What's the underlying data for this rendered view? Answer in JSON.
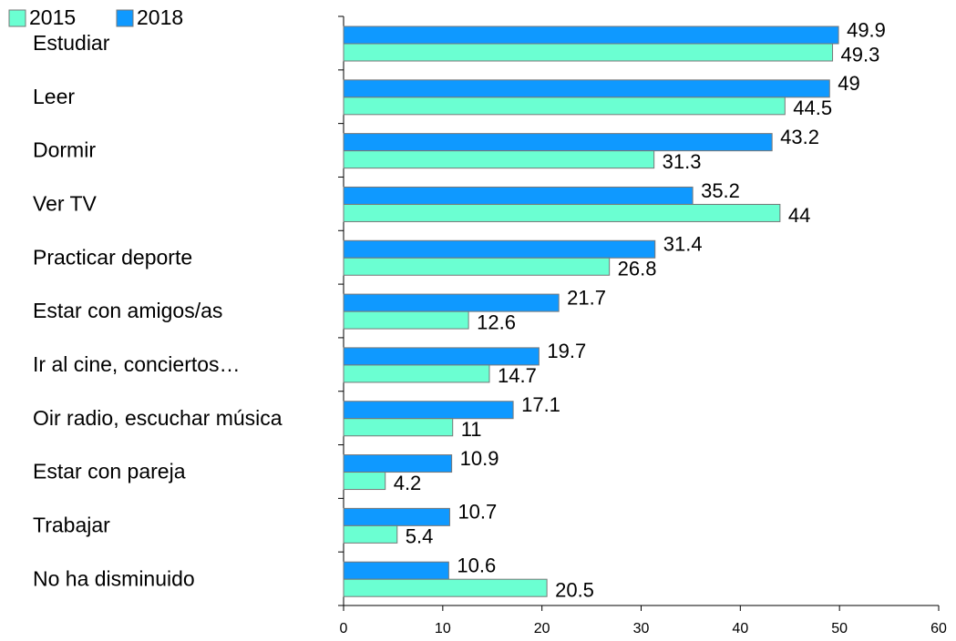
{
  "chart_data": {
    "type": "bar",
    "orientation": "horizontal",
    "categories": [
      "Estudiar",
      "Leer",
      "Dormir",
      "Ver TV",
      "Practicar deporte",
      "Estar con amigos/as",
      "Ir al cine, conciertos…",
      "Oir radio, escuchar música",
      "Estar con pareja",
      "Trabajar",
      "No ha disminuido"
    ],
    "series": [
      {
        "name": "2015",
        "color": "#6bffd2",
        "values": [
          49.3,
          44.5,
          31.3,
          44,
          26.8,
          12.6,
          14.7,
          11,
          4.2,
          5.4,
          20.5
        ]
      },
      {
        "name": "2018",
        "color": "#0f99ff",
        "values": [
          49.9,
          49,
          43.2,
          35.2,
          31.4,
          21.7,
          19.7,
          17.1,
          10.9,
          10.7,
          10.6
        ]
      }
    ],
    "xlim": [
      0,
      60
    ],
    "xticks": [
      0,
      10,
      20,
      30,
      40,
      50,
      60
    ],
    "legend": "top-left"
  }
}
